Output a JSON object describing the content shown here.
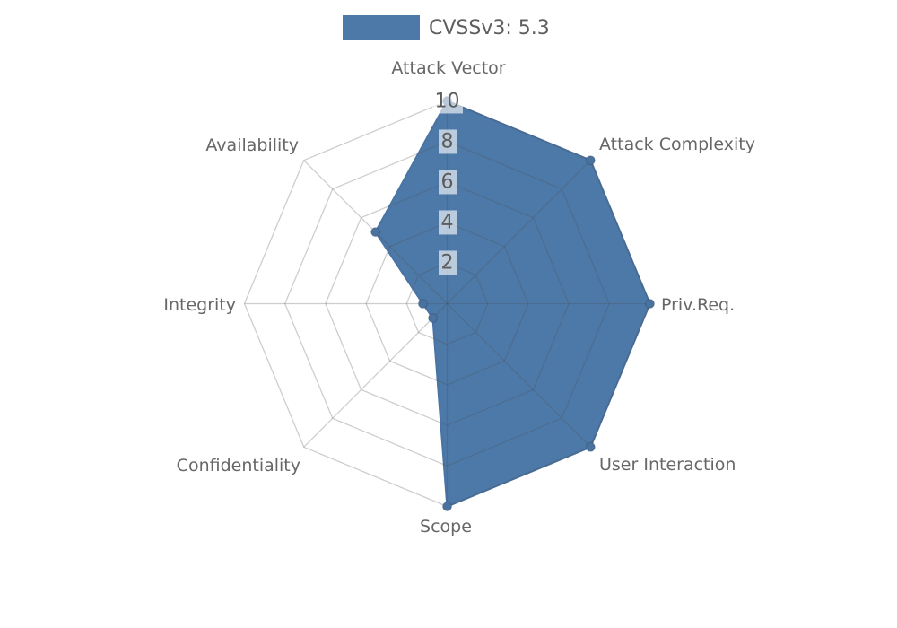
{
  "legend": {
    "label": "CVSSv3: 5.3"
  },
  "colors": {
    "fill": "#4d79a9",
    "stroke": "#4a74a4",
    "dot": "#49729f",
    "grid": "rgba(80,80,80,0.28)",
    "text": "#676767",
    "tick_text": "#5c5c5c",
    "tick_bbox": "rgba(255,255,255,0.62)"
  },
  "chart_data": {
    "type": "radar",
    "title": "",
    "axes": [
      "Attack Vector",
      "Attack Complexity",
      "Priv.Req.",
      "User Interaction",
      "Scope",
      "Confidentiality",
      "Integrity",
      "Availability"
    ],
    "series": [
      {
        "name": "CVSSv3: 5.3",
        "values": [
          10,
          10,
          10,
          10,
          10,
          1,
          1.2,
          5
        ]
      }
    ],
    "radial_ticks": [
      2,
      4,
      6,
      8,
      10
    ],
    "rmax": 10,
    "grid": true,
    "grid_shape": "polygon",
    "legend_position": "top-center"
  }
}
